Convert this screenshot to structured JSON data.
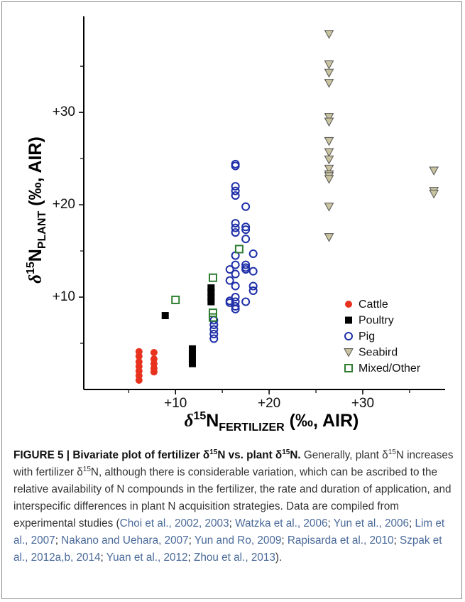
{
  "chart_data": {
    "type": "scatter",
    "xlabel": {
      "symbol": "δ",
      "sup": "15",
      "base": "N",
      "sub": "FERTILIZER",
      "unit": " (‰, AIR)"
    },
    "ylabel": {
      "symbol": "δ",
      "sup": "15",
      "base": "N",
      "sub": "PLANT",
      "unit": " (‰, AIR)"
    },
    "xlim": [
      0.2,
      38.8
    ],
    "ylim": [
      0,
      40.4
    ],
    "xticks": [
      {
        "value": 10,
        "label": "+10"
      },
      {
        "value": 20,
        "label": "+20"
      },
      {
        "value": 30,
        "label": "+30"
      }
    ],
    "yticks": [
      {
        "value": 10,
        "label": "+10"
      },
      {
        "value": 20,
        "label": "+20"
      },
      {
        "value": 30,
        "label": "+30"
      }
    ],
    "xminorticks": [
      5,
      15,
      25,
      35
    ],
    "yminorticks": [
      5,
      15,
      25,
      35
    ],
    "legend": "lower right",
    "series": [
      {
        "name": "Cattle",
        "color": "#e8321e",
        "marker": "circle-filled",
        "x": [
          6.1,
          6.1,
          6.1,
          6.1,
          6.1,
          6.1,
          6.1,
          7.7,
          7.7,
          7.7,
          7.7,
          7.7
        ],
        "y": [
          4.1,
          3.6,
          3.0,
          2.5,
          2.0,
          1.5,
          1.0,
          4.0,
          3.3,
          2.8,
          2.3,
          1.9
        ]
      },
      {
        "name": "Poultry",
        "color": "#000000",
        "marker": "square-filled",
        "x": [
          8.9,
          11.8,
          11.8,
          11.8,
          11.8,
          13.8,
          13.8,
          13.8,
          13.8
        ],
        "y": [
          8.0,
          2.8,
          3.3,
          3.8,
          4.4,
          9.5,
          10.0,
          10.5,
          11.0
        ]
      },
      {
        "name": "Pig",
        "color": "#1f2fa8",
        "marker": "circle-open",
        "x": [
          14.1,
          14.1,
          14.1,
          14.1,
          14.1,
          15.8,
          15.8,
          15.8,
          15.8,
          16.4,
          16.4,
          16.4,
          16.4,
          16.4,
          16.4,
          16.4,
          16.4,
          16.4,
          16.4,
          16.4,
          16.4,
          16.4,
          16.4,
          16.4,
          16.4,
          17.5,
          17.5,
          17.5,
          17.5,
          17.5,
          17.5,
          17.5,
          17.5,
          18.3,
          18.3,
          18.3,
          18.3
        ],
        "y": [
          5.5,
          6.0,
          6.5,
          7.0,
          7.5,
          9.4,
          9.6,
          11.8,
          13.0,
          24.4,
          24.2,
          22.0,
          21.5,
          21.0,
          18.0,
          17.5,
          17.0,
          14.5,
          13.5,
          12.5,
          11.2,
          10.0,
          9.5,
          9.0,
          8.7,
          19.8,
          17.6,
          17.3,
          16.3,
          13.5,
          13.2,
          13.0,
          9.5,
          14.7,
          12.8,
          11.2,
          10.7
        ]
      },
      {
        "name": "Seabird",
        "color": "#c9c3a0",
        "edgecolor": "#555555",
        "marker": "triangle-down",
        "x": [
          26.4,
          26.4,
          26.4,
          26.4,
          26.4,
          26.4,
          26.4,
          26.4,
          26.4,
          26.4,
          26.4,
          26.4,
          26.4,
          26.4,
          26.4,
          37.6,
          37.6,
          37.6
        ],
        "y": [
          38.5,
          35.2,
          34.3,
          33.2,
          29.5,
          29.0,
          26.9,
          25.7,
          24.9,
          23.9,
          23.3,
          23.1,
          22.8,
          19.8,
          16.5,
          23.7,
          21.5,
          21.2
        ]
      },
      {
        "name": "Mixed/Other",
        "color": "#2e7d32",
        "marker": "square-open",
        "x": [
          10.0,
          14.0,
          14.0,
          14.0,
          16.8
        ],
        "y": [
          9.7,
          12.1,
          8.3,
          7.8,
          15.2
        ]
      }
    ]
  },
  "caption": [
    {
      "text": "FIGURE 5 | Bivariate plot of fertilizer δ",
      "style": "bold"
    },
    {
      "text": "15",
      "style": "bold-sup"
    },
    {
      "text": "N vs. plant δ",
      "style": "bold"
    },
    {
      "text": "15",
      "style": "bold-sup"
    },
    {
      "text": "N.",
      "style": "bold"
    },
    {
      "text": " Generally, plant δ",
      "style": "plain"
    },
    {
      "text": "15",
      "style": "sup"
    },
    {
      "text": "N increases with fertilizer δ",
      "style": "plain"
    },
    {
      "text": "15",
      "style": "sup"
    },
    {
      "text": "N, although there is considerable variation, which can be ascribed to the relative availability of N compounds in the fertilizer, the rate and duration of application, and interspecific differences in plant N acquisition strategies. Data are compiled from experimental studies (",
      "style": "plain"
    },
    {
      "text": "Choi et al., 2002, 2003",
      "style": "cite"
    },
    {
      "text": "; ",
      "style": "plain"
    },
    {
      "text": "Watzka et al., 2006",
      "style": "cite"
    },
    {
      "text": "; ",
      "style": "plain"
    },
    {
      "text": "Yun et al., 2006",
      "style": "cite"
    },
    {
      "text": "; ",
      "style": "plain"
    },
    {
      "text": "Lim et al., 2007",
      "style": "cite"
    },
    {
      "text": "; ",
      "style": "plain"
    },
    {
      "text": "Nakano and Uehara, 2007",
      "style": "cite"
    },
    {
      "text": "; ",
      "style": "plain"
    },
    {
      "text": "Yun and Ro, 2009",
      "style": "cite"
    },
    {
      "text": "; ",
      "style": "plain"
    },
    {
      "text": "Rapisarda et al., 2010",
      "style": "cite"
    },
    {
      "text": "; ",
      "style": "plain"
    },
    {
      "text": "Szpak et al., 2012a,b, 2014",
      "style": "cite"
    },
    {
      "text": "; ",
      "style": "plain"
    },
    {
      "text": "Yuan et al., 2012",
      "style": "cite"
    },
    {
      "text": "; ",
      "style": "plain"
    },
    {
      "text": "Zhou et al., 2013",
      "style": "cite"
    },
    {
      "text": ").",
      "style": "plain"
    }
  ]
}
